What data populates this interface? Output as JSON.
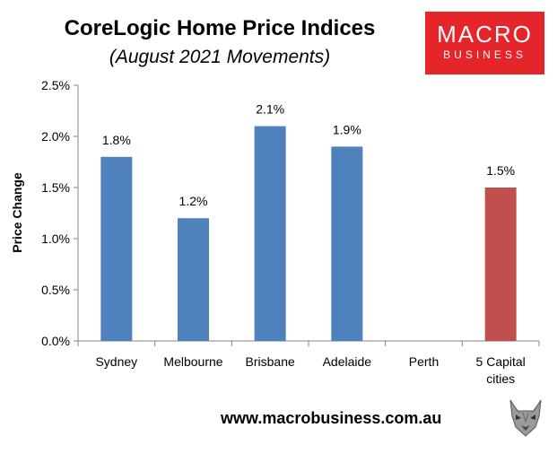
{
  "chart_data": {
    "type": "bar",
    "title": "CoreLogic Home Price Indices",
    "subtitle": "(August 2021 Movements)",
    "ylabel": "Price Change",
    "xlabel": "",
    "categories": [
      [
        "Sydney"
      ],
      [
        "Melbourne"
      ],
      [
        "Brisbane"
      ],
      [
        "Adelaide"
      ],
      [
        "Perth"
      ],
      [
        "5 Capital",
        "cities"
      ]
    ],
    "values": [
      1.8,
      1.2,
      2.1,
      1.9,
      null,
      1.5
    ],
    "data_labels": [
      "1.8%",
      "1.2%",
      "2.1%",
      "1.9%",
      "",
      "1.5%"
    ],
    "bar_colors": [
      "#4f81bd",
      "#4f81bd",
      "#4f81bd",
      "#4f81bd",
      "#4f81bd",
      "#c0504d"
    ],
    "ylim": [
      0,
      2.5
    ],
    "yticks": [
      0,
      0.5,
      1.0,
      1.5,
      2.0,
      2.5
    ],
    "ytick_labels": [
      "0.0%",
      "0.5%",
      "1.0%",
      "1.5%",
      "2.0%",
      "2.5%"
    ],
    "grid": false,
    "legend": "none"
  },
  "logo": {
    "line1": "MACRO",
    "line2": "BUSINESS",
    "color": "#e5252a"
  },
  "footer": {
    "url": "www.macrobusiness.com.au"
  }
}
